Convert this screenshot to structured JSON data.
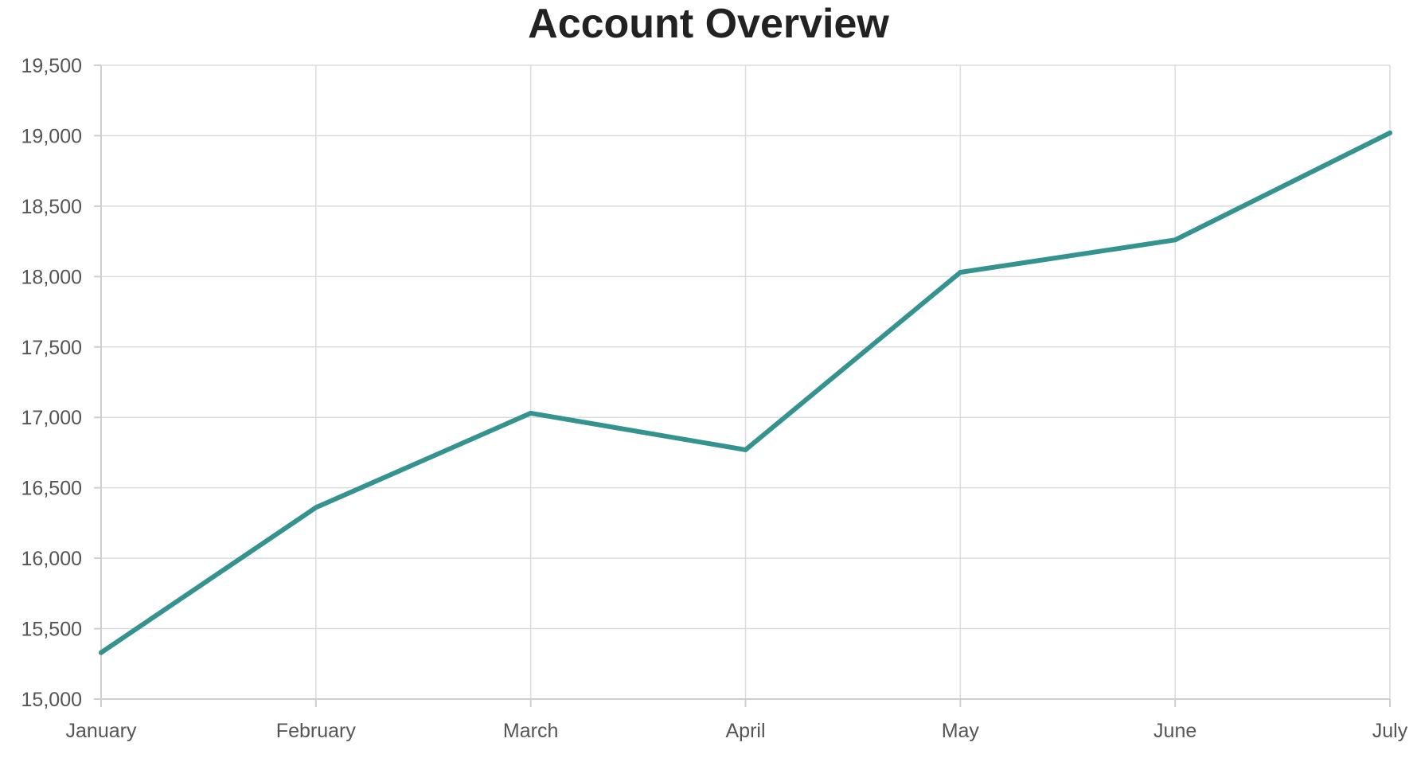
{
  "chart_data": {
    "type": "line",
    "title": "Account Overview",
    "xlabel": "",
    "ylabel": "",
    "categories": [
      "January",
      "February",
      "March",
      "April",
      "May",
      "June",
      "July"
    ],
    "series": [
      {
        "values": [
          15330,
          16360,
          17030,
          16770,
          18030,
          18260,
          19020
        ]
      }
    ],
    "ylim": [
      15000,
      19500
    ],
    "yticks": [
      15000,
      15500,
      16000,
      16500,
      17000,
      17500,
      18000,
      18500,
      19000,
      19500
    ],
    "ytick_labels": [
      "15,000",
      "15,500",
      "16,000",
      "16,500",
      "17,000",
      "17,500",
      "18,000",
      "18,500",
      "19,000",
      "19,500"
    ],
    "grid": true,
    "legend": "none",
    "colors": {
      "line": "#35938f"
    }
  }
}
